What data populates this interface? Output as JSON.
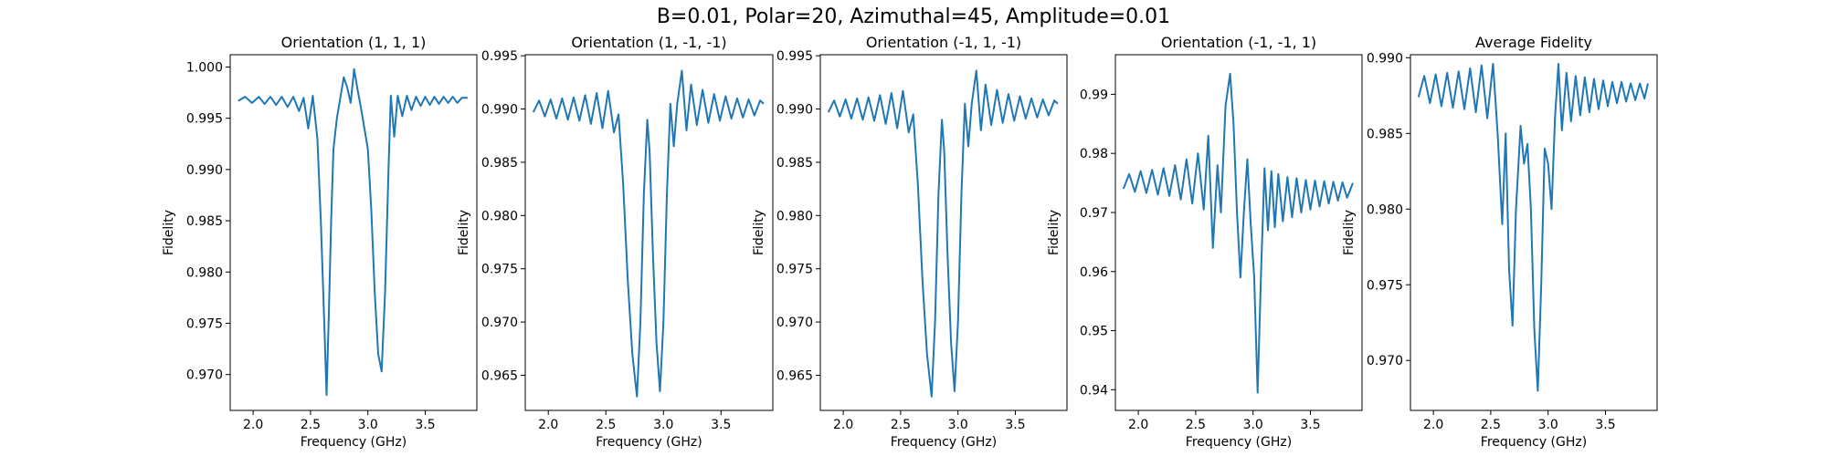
{
  "figure": {
    "suptitle": "B=0.01, Polar=20, Azimuthal=45, Amplitude=0.01"
  },
  "chart_data": [
    {
      "type": "line",
      "title": "Orientation (1, 1, 1)",
      "xlabel": "Frequency (GHz)",
      "ylabel": "Fidelity",
      "xlim": [
        1.8,
        3.95
      ],
      "ylim": [
        0.9665,
        1.0012
      ],
      "xticks": [
        "2.0",
        "2.5",
        "3.0",
        "3.5"
      ],
      "yticks": [
        "0.970",
        "0.975",
        "0.980",
        "0.985",
        "0.990",
        "0.995",
        "1.000"
      ],
      "color": "#1f77b4",
      "series": [
        {
          "x": [
            1.87,
            1.93,
            1.99,
            2.05,
            2.1,
            2.15,
            2.2,
            2.25,
            2.3,
            2.35,
            2.4,
            2.44,
            2.48,
            2.52,
            2.56,
            2.59,
            2.62,
            2.64,
            2.66,
            2.68,
            2.7,
            2.73,
            2.76,
            2.79,
            2.82,
            2.85,
            2.88,
            2.91,
            2.94,
            2.97,
            3.0,
            3.03,
            3.06,
            3.09,
            3.12,
            3.15,
            3.18,
            3.2,
            3.23,
            3.26,
            3.3,
            3.34,
            3.38,
            3.42,
            3.46,
            3.5,
            3.54,
            3.58,
            3.62,
            3.66,
            3.7,
            3.74,
            3.78,
            3.82,
            3.87
          ],
          "y": [
            0.9967,
            0.9971,
            0.9965,
            0.9971,
            0.9964,
            0.9971,
            0.9963,
            0.9971,
            0.9961,
            0.9971,
            0.9957,
            0.997,
            0.994,
            0.9972,
            0.993,
            0.985,
            0.975,
            0.968,
            0.976,
            0.985,
            0.992,
            0.995,
            0.997,
            0.999,
            0.998,
            0.9965,
            0.9998,
            0.9978,
            0.996,
            0.994,
            0.992,
            0.986,
            0.978,
            0.972,
            0.9703,
            0.978,
            0.99,
            0.9972,
            0.9932,
            0.9972,
            0.9952,
            0.9972,
            0.9958,
            0.9971,
            0.9962,
            0.9971,
            0.9963,
            0.9971,
            0.9964,
            0.9971,
            0.9965,
            0.9971,
            0.9965,
            0.997,
            0.997
          ]
        }
      ]
    },
    {
      "type": "line",
      "title": "Orientation (1, -1, -1)",
      "xlabel": "Frequency (GHz)",
      "ylabel": "Fidelity",
      "xlim": [
        1.8,
        3.95
      ],
      "ylim": [
        0.9617,
        0.9951
      ],
      "xticks": [
        "2.0",
        "2.5",
        "3.0",
        "3.5"
      ],
      "yticks": [
        "0.965",
        "0.970",
        "0.975",
        "0.980",
        "0.985",
        "0.990",
        "0.995"
      ],
      "color": "#1f77b4",
      "series": [
        {
          "x": [
            1.87,
            1.92,
            1.97,
            2.02,
            2.07,
            2.12,
            2.17,
            2.22,
            2.27,
            2.32,
            2.37,
            2.42,
            2.47,
            2.52,
            2.57,
            2.61,
            2.65,
            2.69,
            2.73,
            2.77,
            2.8,
            2.83,
            2.86,
            2.88,
            2.91,
            2.94,
            2.97,
            3.0,
            3.03,
            3.06,
            3.09,
            3.12,
            3.16,
            3.2,
            3.24,
            3.29,
            3.34,
            3.39,
            3.44,
            3.49,
            3.54,
            3.59,
            3.64,
            3.69,
            3.74,
            3.79,
            3.84,
            3.87
          ],
          "y": [
            0.9897,
            0.9908,
            0.9893,
            0.9909,
            0.9891,
            0.991,
            0.989,
            0.9911,
            0.9889,
            0.9913,
            0.9886,
            0.9915,
            0.9882,
            0.9917,
            0.9878,
            0.9895,
            0.983,
            0.974,
            0.967,
            0.963,
            0.97,
            0.982,
            0.989,
            0.986,
            0.976,
            0.968,
            0.9635,
            0.97,
            0.982,
            0.9905,
            0.9865,
            0.9905,
            0.9936,
            0.988,
            0.9923,
            0.9885,
            0.9918,
            0.9887,
            0.9914,
            0.9889,
            0.9912,
            0.9891,
            0.991,
            0.9892,
            0.9909,
            0.9894,
            0.9908,
            0.9905
          ]
        }
      ]
    },
    {
      "type": "line",
      "title": "Orientation (-1, 1, -1)",
      "xlabel": "Frequency (GHz)",
      "ylabel": "Fidelity",
      "xlim": [
        1.8,
        3.95
      ],
      "ylim": [
        0.9617,
        0.9951
      ],
      "xticks": [
        "2.0",
        "2.5",
        "3.0",
        "3.5"
      ],
      "yticks": [
        "0.965",
        "0.970",
        "0.975",
        "0.980",
        "0.985",
        "0.990",
        "0.995"
      ],
      "color": "#1f77b4",
      "series": [
        {
          "x": [
            1.87,
            1.92,
            1.97,
            2.02,
            2.07,
            2.12,
            2.17,
            2.22,
            2.27,
            2.32,
            2.37,
            2.42,
            2.47,
            2.52,
            2.57,
            2.61,
            2.65,
            2.69,
            2.73,
            2.77,
            2.8,
            2.83,
            2.86,
            2.88,
            2.91,
            2.94,
            2.97,
            3.0,
            3.03,
            3.06,
            3.09,
            3.12,
            3.16,
            3.2,
            3.24,
            3.29,
            3.34,
            3.39,
            3.44,
            3.49,
            3.54,
            3.59,
            3.64,
            3.69,
            3.74,
            3.79,
            3.84,
            3.87
          ],
          "y": [
            0.9897,
            0.9908,
            0.9893,
            0.9909,
            0.9891,
            0.991,
            0.989,
            0.9911,
            0.9889,
            0.9913,
            0.9886,
            0.9915,
            0.9882,
            0.9917,
            0.9878,
            0.9895,
            0.983,
            0.974,
            0.967,
            0.963,
            0.97,
            0.982,
            0.989,
            0.986,
            0.976,
            0.968,
            0.9635,
            0.97,
            0.982,
            0.9905,
            0.9865,
            0.9905,
            0.9936,
            0.988,
            0.9923,
            0.9885,
            0.9918,
            0.9887,
            0.9914,
            0.9889,
            0.9912,
            0.9891,
            0.991,
            0.9892,
            0.9909,
            0.9894,
            0.9908,
            0.9905
          ]
        }
      ]
    },
    {
      "type": "line",
      "title": "Orientation (-1, -1, 1)",
      "xlabel": "Frequency (GHz)",
      "ylabel": "Fidelity",
      "xlim": [
        1.8,
        3.95
      ],
      "ylim": [
        0.9365,
        0.9967
      ],
      "xticks": [
        "2.0",
        "2.5",
        "3.0",
        "3.5"
      ],
      "yticks": [
        "0.94",
        "0.95",
        "0.96",
        "0.97",
        "0.98",
        "0.99"
      ],
      "color": "#1f77b4",
      "series": [
        {
          "x": [
            1.87,
            1.92,
            1.97,
            2.02,
            2.07,
            2.12,
            2.17,
            2.22,
            2.27,
            2.32,
            2.37,
            2.42,
            2.47,
            2.52,
            2.57,
            2.61,
            2.65,
            2.69,
            2.72,
            2.76,
            2.8,
            2.83,
            2.86,
            2.89,
            2.92,
            2.95,
            2.98,
            3.01,
            3.04,
            3.07,
            3.1,
            3.13,
            3.16,
            3.19,
            3.22,
            3.26,
            3.3,
            3.34,
            3.38,
            3.42,
            3.46,
            3.5,
            3.54,
            3.58,
            3.62,
            3.66,
            3.7,
            3.74,
            3.78,
            3.82,
            3.87
          ],
          "y": [
            0.974,
            0.9765,
            0.9735,
            0.977,
            0.9733,
            0.9772,
            0.973,
            0.9775,
            0.9728,
            0.978,
            0.9722,
            0.979,
            0.9715,
            0.98,
            0.9705,
            0.983,
            0.964,
            0.978,
            0.97,
            0.988,
            0.9935,
            0.985,
            0.97,
            0.959,
            0.97,
            0.979,
            0.968,
            0.959,
            0.9395,
            0.96,
            0.9775,
            0.967,
            0.977,
            0.9675,
            0.9765,
            0.9685,
            0.976,
            0.9692,
            0.9758,
            0.97,
            0.9755,
            0.9705,
            0.9754,
            0.971,
            0.9753,
            0.9715,
            0.9752,
            0.972,
            0.9751,
            0.9725,
            0.975
          ]
        }
      ]
    },
    {
      "type": "line",
      "title": "Average Fidelity",
      "xlabel": "Frequency (GHz)",
      "ylabel": "Fidelity",
      "xlim": [
        1.8,
        3.95
      ],
      "ylim": [
        0.9667,
        0.9902
      ],
      "xticks": [
        "2.0",
        "2.5",
        "3.0",
        "3.5"
      ],
      "yticks": [
        "0.970",
        "0.975",
        "0.980",
        "0.985",
        "0.990"
      ],
      "color": "#1f77b4",
      "series": [
        {
          "x": [
            1.87,
            1.92,
            1.97,
            2.02,
            2.07,
            2.12,
            2.17,
            2.22,
            2.27,
            2.32,
            2.37,
            2.42,
            2.47,
            2.52,
            2.56,
            2.6,
            2.63,
            2.66,
            2.69,
            2.72,
            2.76,
            2.79,
            2.82,
            2.85,
            2.88,
            2.91,
            2.94,
            2.97,
            3.0,
            3.03,
            3.06,
            3.09,
            3.12,
            3.16,
            3.2,
            3.24,
            3.28,
            3.32,
            3.36,
            3.4,
            3.44,
            3.48,
            3.52,
            3.56,
            3.6,
            3.64,
            3.68,
            3.72,
            3.76,
            3.8,
            3.84,
            3.87
          ],
          "y": [
            0.9874,
            0.9888,
            0.987,
            0.9889,
            0.9868,
            0.989,
            0.9867,
            0.9891,
            0.9866,
            0.9893,
            0.9864,
            0.9895,
            0.986,
            0.9896,
            0.985,
            0.979,
            0.985,
            0.976,
            0.9723,
            0.98,
            0.9855,
            0.983,
            0.9843,
            0.98,
            0.972,
            0.968,
            0.975,
            0.984,
            0.983,
            0.98,
            0.986,
            0.9896,
            0.9852,
            0.989,
            0.9858,
            0.9888,
            0.9862,
            0.9887,
            0.9864,
            0.9886,
            0.9866,
            0.9885,
            0.9868,
            0.9884,
            0.987,
            0.9884,
            0.9871,
            0.9883,
            0.9872,
            0.9883,
            0.9873,
            0.9883
          ]
        }
      ]
    }
  ]
}
